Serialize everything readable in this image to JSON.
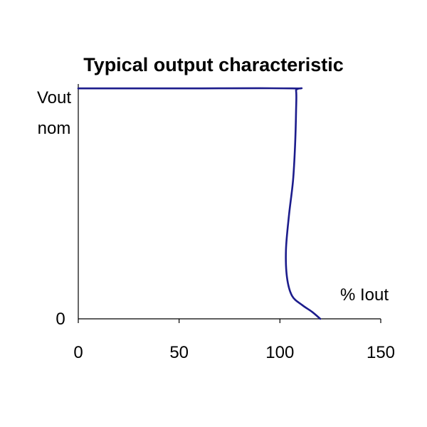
{
  "chart_data": {
    "type": "line",
    "title": "Typical output characteristic",
    "ylabel": [
      "Vout",
      "nom"
    ],
    "xlabel": "% Iout",
    "xlim": [
      0,
      150
    ],
    "ylim": [
      0,
      1.05
    ],
    "x_ticks": [
      0,
      50,
      100,
      150
    ],
    "y_ticks": [
      {
        "value": 0,
        "label": "0"
      }
    ],
    "grid": false,
    "colors": {
      "series": "#1c1c8c",
      "axis": "#000000"
    },
    "series": [
      {
        "name": "",
        "points": [
          {
            "x": 0,
            "y": 1.0
          },
          {
            "x": 50,
            "y": 1.0
          },
          {
            "x": 106,
            "y": 1.0
          },
          {
            "x": 108,
            "y": 0.99
          },
          {
            "x": 108,
            "y": 0.9
          },
          {
            "x": 107.5,
            "y": 0.75
          },
          {
            "x": 106.5,
            "y": 0.6
          },
          {
            "x": 104.5,
            "y": 0.45
          },
          {
            "x": 103,
            "y": 0.3
          },
          {
            "x": 103.5,
            "y": 0.18
          },
          {
            "x": 106,
            "y": 0.1
          },
          {
            "x": 111,
            "y": 0.06
          },
          {
            "x": 116,
            "y": 0.03
          },
          {
            "x": 120,
            "y": 0.0
          }
        ]
      }
    ]
  }
}
